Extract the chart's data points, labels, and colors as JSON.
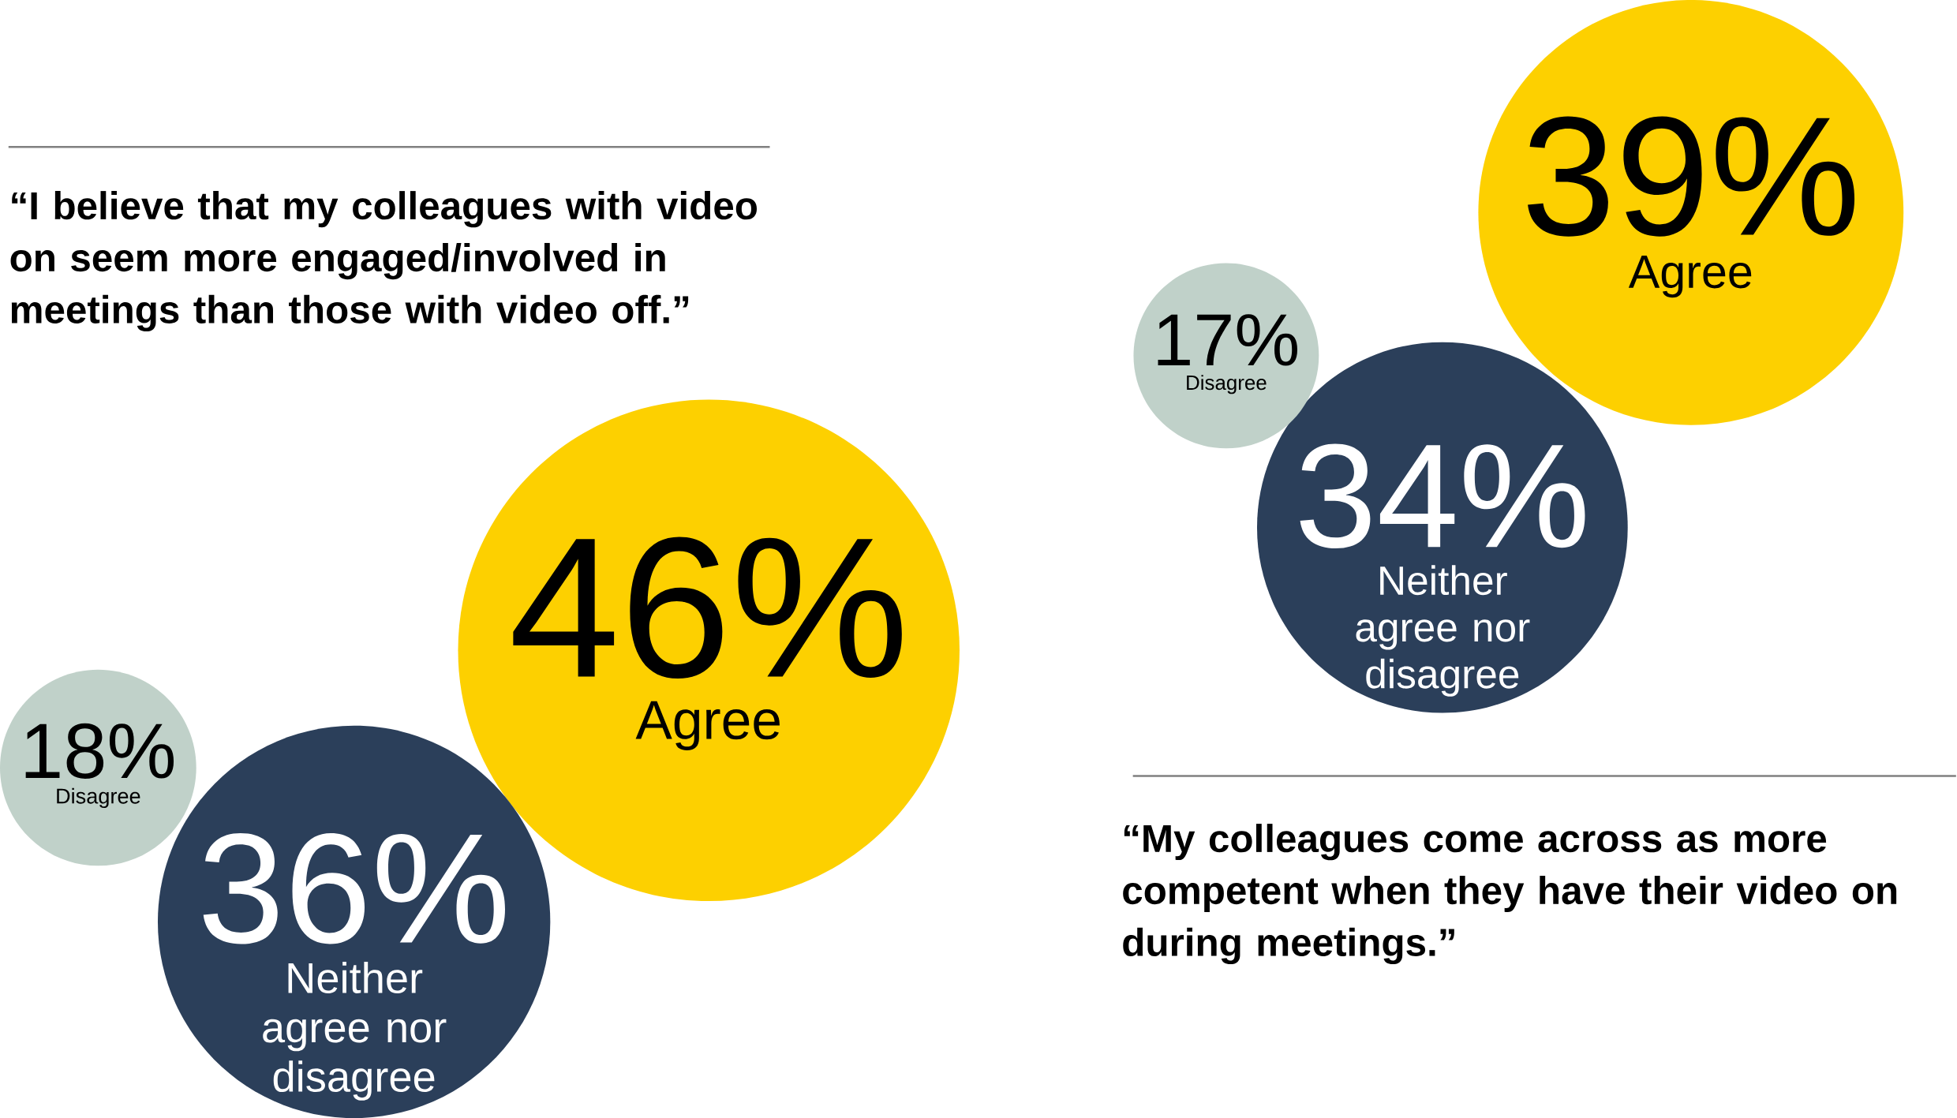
{
  "chart_data": [
    {
      "type": "other",
      "title": "“I believe that my colleagues with video on seem more engaged/involved in meetings than those with video off.”",
      "categories": [
        "Agree",
        "Neither agree nor disagree",
        "Disagree"
      ],
      "values": [
        46,
        36,
        18
      ],
      "value_labels": [
        "46%",
        "36%",
        "18%"
      ],
      "colors": [
        "#fdd000",
        "#2b3f5a",
        "#c0d1c9"
      ]
    },
    {
      "type": "other",
      "title": "“My colleagues come across as more competent when they have their video on during meetings.”",
      "categories": [
        "Agree",
        "Neither agree nor disagree",
        "Disagree"
      ],
      "values": [
        39,
        34,
        17
      ],
      "value_labels": [
        "39%",
        "34%",
        "17%"
      ],
      "colors": [
        "#fdd000",
        "#2b3f5a",
        "#c0d1c9"
      ]
    }
  ]
}
